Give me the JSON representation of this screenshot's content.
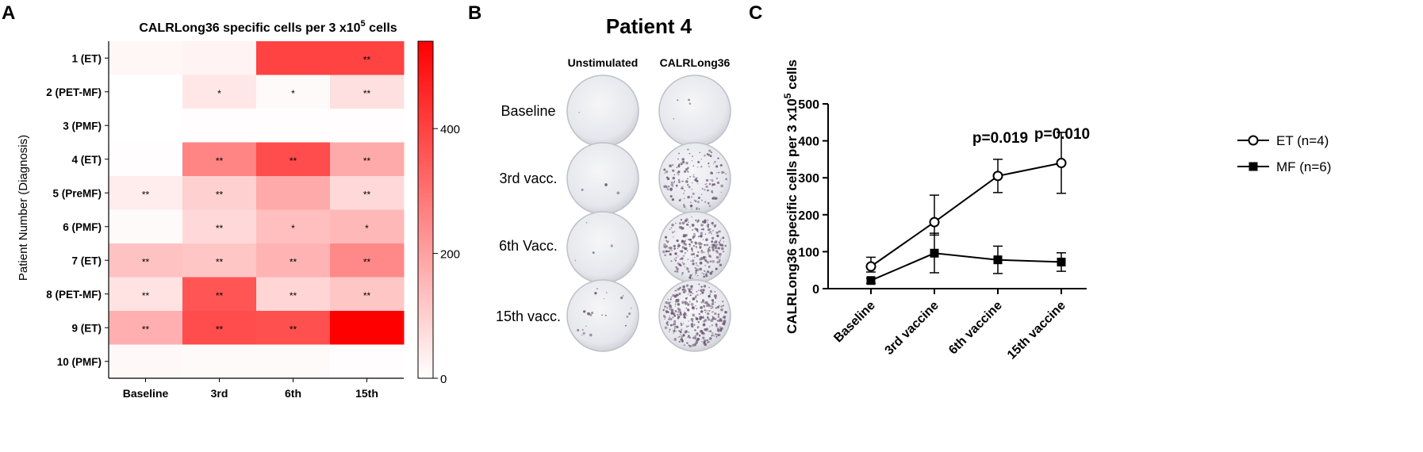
{
  "panels": {
    "a": {
      "letter": "A",
      "title_main": "CALRLong36 specific cells per 3 x10",
      "title_sup": "5",
      "title_tail": " cells",
      "ylabel": "Patient Number (Diagnosis)",
      "colorbar_ticks": [
        "0",
        "200",
        "400"
      ],
      "colors": {
        "low": "#ffffff",
        "high": "#ff0000"
      }
    },
    "b": {
      "letter": "B",
      "title": "Patient 4",
      "col_headers": [
        "Unstimulated",
        "CALRLong36"
      ],
      "row_labels": [
        "Baseline",
        "3rd vacc.",
        "6th Vacc.",
        "15th vacc."
      ]
    },
    "c": {
      "letter": "C",
      "pvalues": [
        "p=0.019",
        "p=0.010"
      ]
    }
  },
  "chart_data": [
    {
      "type": "heatmap",
      "title": "CALRLong36 specific cells per 3 x10^5 cells",
      "xlabel": "",
      "ylabel": "Patient Number (Diagnosis)",
      "columns": [
        "Baseline",
        "3rd",
        "6th",
        "15th"
      ],
      "rows": [
        "1 (ET)",
        "2 (PET-MF)",
        "3 (PMF)",
        "4 (ET)",
        "5 (PreMF)",
        "6 (PMF)",
        "7 (ET)",
        "8 (PET-MF)",
        "9 (ET)",
        "10 (PMF)"
      ],
      "values": [
        [
          20,
          25,
          400,
          400
        ],
        [
          0,
          50,
          10,
          65
        ],
        [
          0,
          5,
          5,
          5
        ],
        [
          5,
          260,
          380,
          180
        ],
        [
          40,
          100,
          180,
          80
        ],
        [
          10,
          80,
          135,
          150
        ],
        [
          130,
          120,
          160,
          250
        ],
        [
          60,
          360,
          90,
          120
        ],
        [
          170,
          380,
          370,
          540
        ],
        [
          15,
          10,
          10,
          5
        ]
      ],
      "significance": [
        [
          "",
          "",
          "",
          "**"
        ],
        [
          "",
          "*",
          "*",
          "**"
        ],
        [
          "",
          "",
          "",
          ""
        ],
        [
          "",
          "**",
          "**",
          "**"
        ],
        [
          "**",
          "**",
          "",
          "**"
        ],
        [
          "",
          "**",
          "*",
          "*"
        ],
        [
          "**",
          "**",
          "**",
          "**"
        ],
        [
          "**",
          "**",
          "**",
          "**"
        ],
        [
          "**",
          "**",
          "**",
          ""
        ],
        [
          "",
          "",
          "",
          ""
        ]
      ],
      "colorbar": {
        "min": 0,
        "max": 540,
        "ticks": [
          0,
          200,
          400
        ]
      }
    },
    {
      "type": "line",
      "title": "",
      "ylabel_main": "CALRLong36 specific cells per 3 x10",
      "ylabel_sup": "5",
      "ylabel_tail": " cells",
      "categories": [
        "Baseline",
        "3rd vaccine",
        "6th vaccine",
        "15th vaccine"
      ],
      "ylim": [
        0,
        500
      ],
      "yticks": [
        0,
        100,
        200,
        300,
        400,
        500
      ],
      "series": [
        {
          "name": "ET (n=4)",
          "marker": "open-circle",
          "values": [
            60,
            180,
            305,
            340
          ],
          "err_low": [
            45,
            145,
            260,
            258
          ],
          "err_high": [
            85,
            253,
            350,
            423
          ]
        },
        {
          "name": "MF (n=6)",
          "marker": "filled-square",
          "values": [
            22,
            96,
            78,
            72
          ],
          "err_low": [
            14,
            43,
            41,
            47
          ],
          "err_high": [
            28,
            150,
            115,
            97
          ]
        }
      ],
      "annotations": [
        {
          "text": "p=0.019",
          "category": "6th vaccine"
        },
        {
          "text": "p=0.010",
          "category": "15th vaccine"
        }
      ],
      "legend": "right"
    }
  ]
}
